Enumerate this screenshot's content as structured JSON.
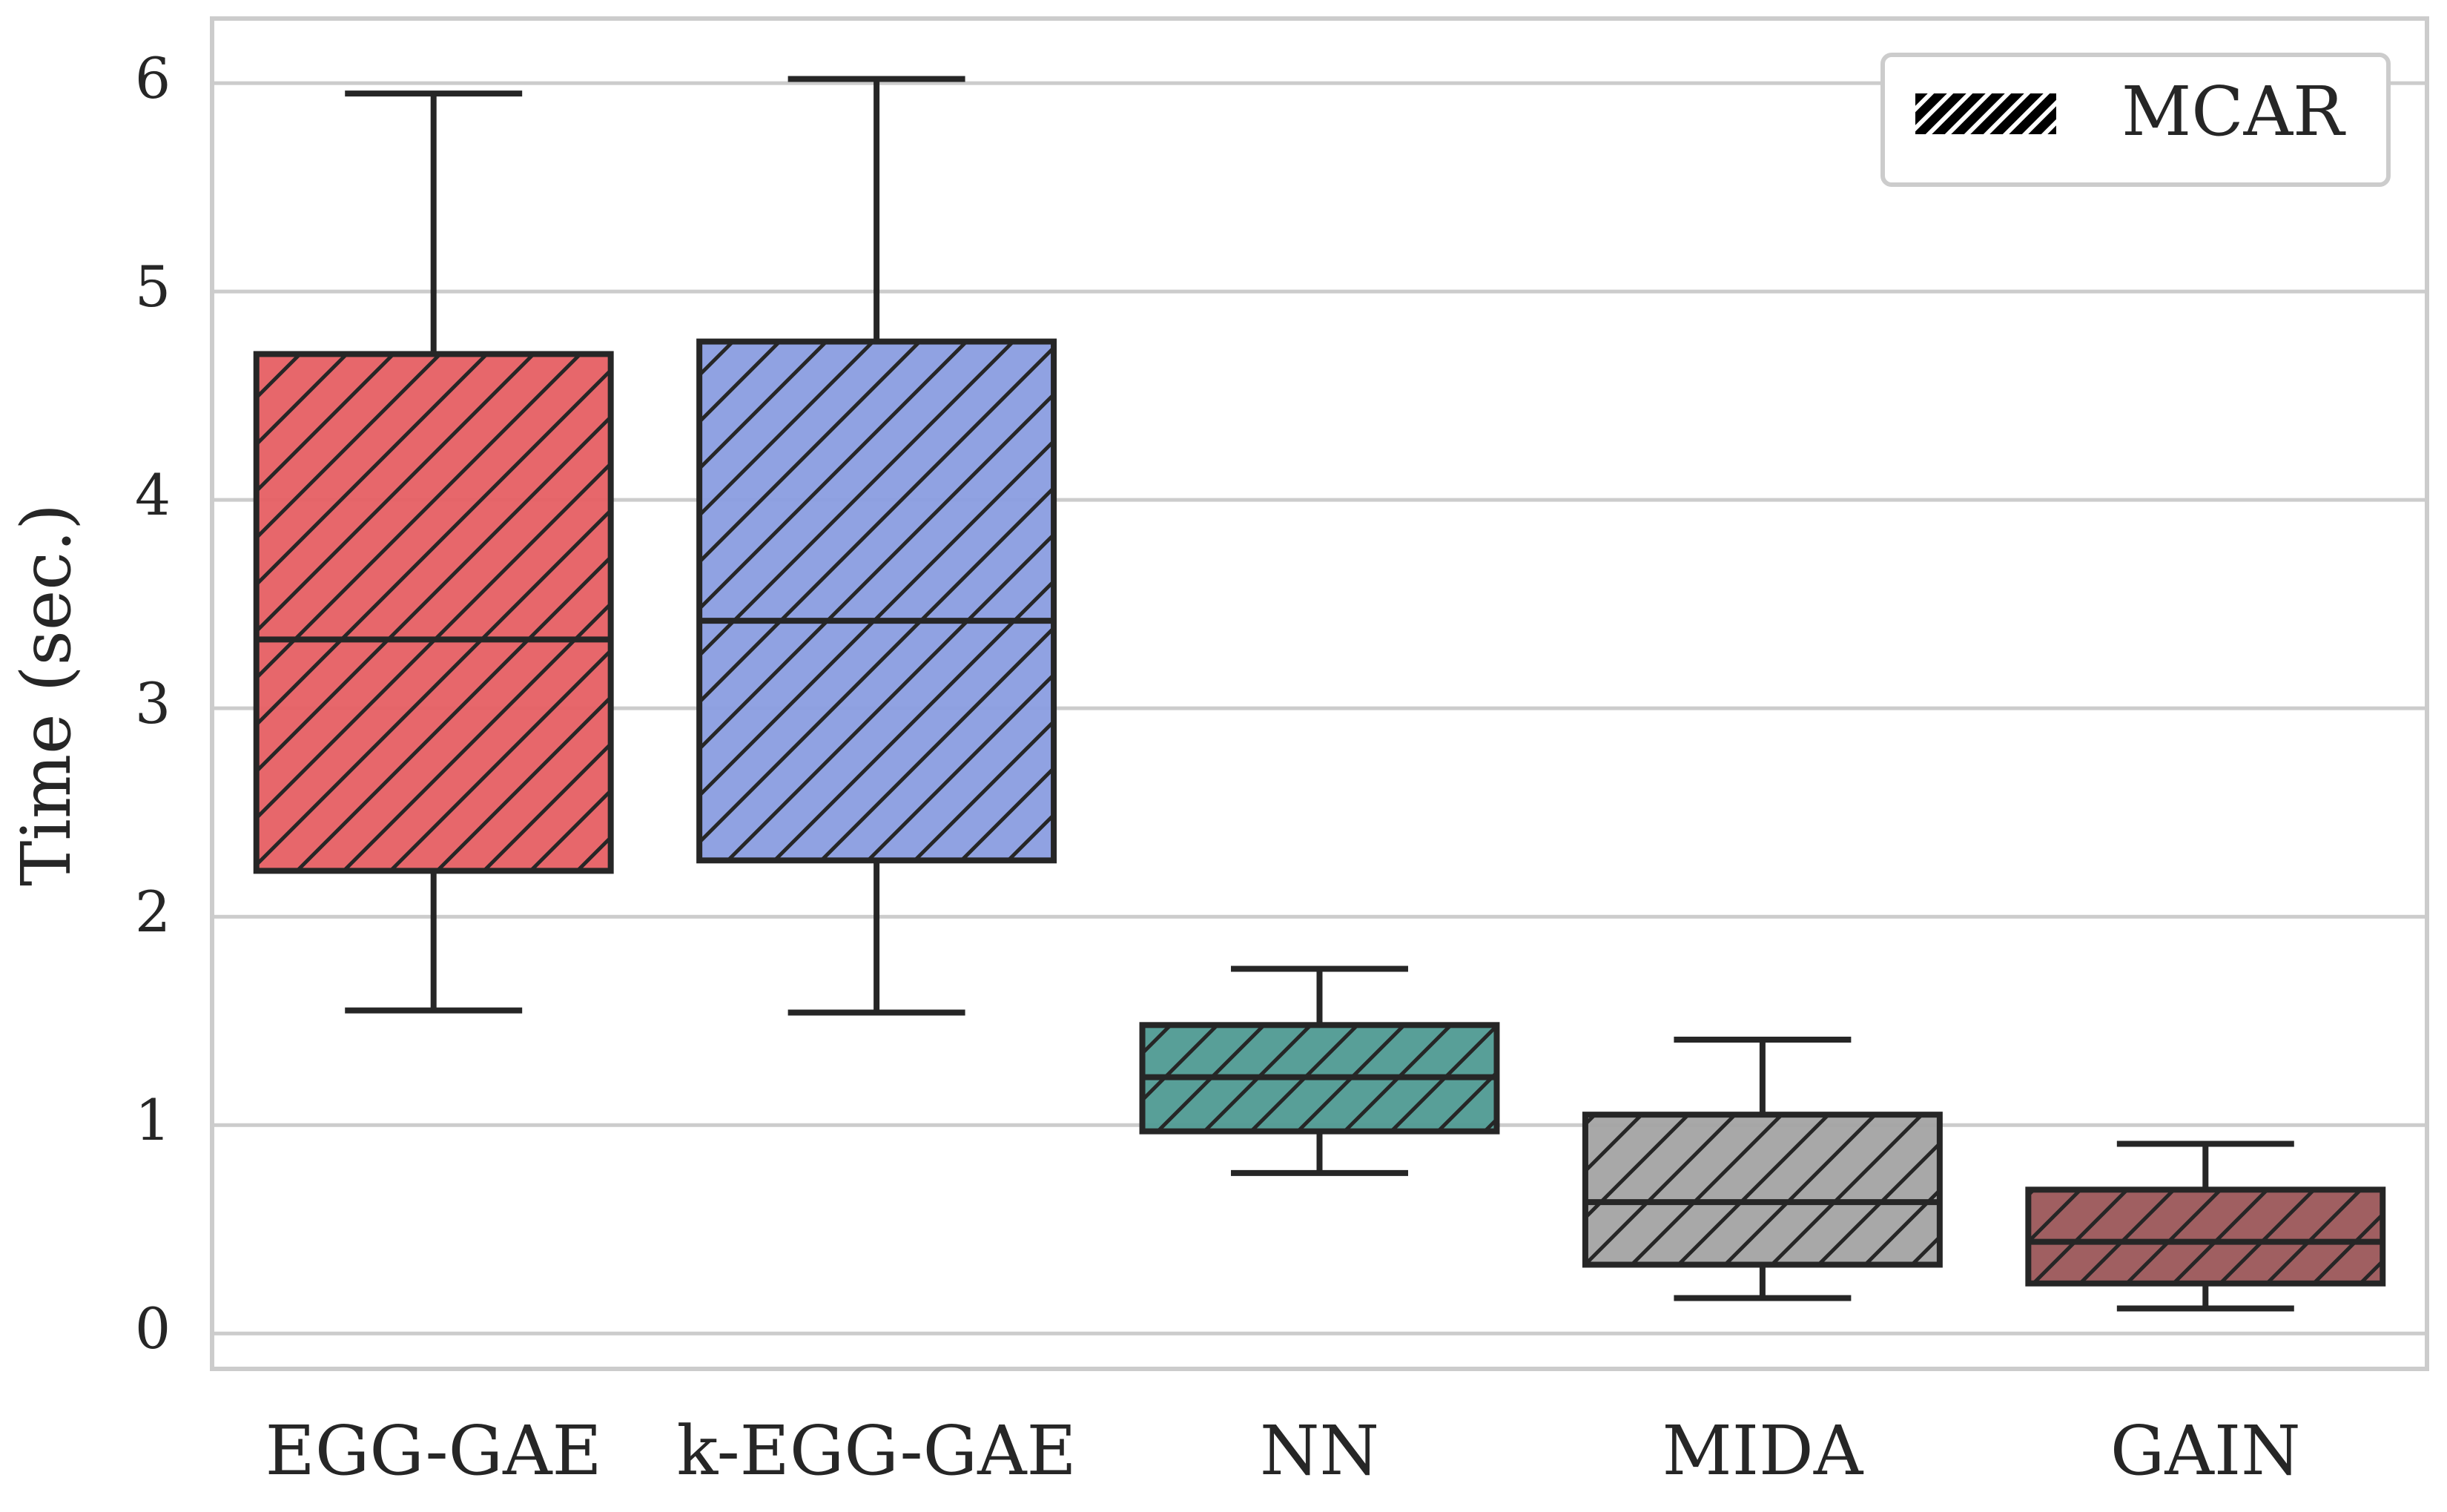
{
  "chart_data": {
    "type": "box",
    "y_label": "Time (sec.)",
    "categories": [
      "EGG-GAE",
      "k-EGG-GAE",
      "NN",
      "MIDA",
      "GAIN"
    ],
    "colors": [
      "#e65f63",
      "#8a9de0",
      "#4f9a92",
      "#a3a3a3",
      "#9b5659"
    ],
    "boxes": [
      {
        "low": 1.55,
        "q1": 2.22,
        "median": 3.33,
        "q3": 4.7,
        "high": 5.95
      },
      {
        "low": 1.54,
        "q1": 2.27,
        "median": 3.42,
        "q3": 4.76,
        "high": 6.02
      },
      {
        "low": 0.77,
        "q1": 0.97,
        "median": 1.23,
        "q3": 1.48,
        "high": 1.75
      },
      {
        "low": 0.17,
        "q1": 0.33,
        "median": 0.63,
        "q3": 1.05,
        "high": 1.41
      },
      {
        "low": 0.12,
        "q1": 0.24,
        "median": 0.44,
        "q3": 0.69,
        "high": 0.91
      }
    ],
    "hatch": "diagonal",
    "legend": {
      "label": "MCAR",
      "loc": "upper right"
    },
    "ylim": [
      -0.17,
      6.31
    ],
    "yticks": [
      0,
      1,
      2,
      3,
      4,
      5,
      6
    ],
    "grid": true
  }
}
